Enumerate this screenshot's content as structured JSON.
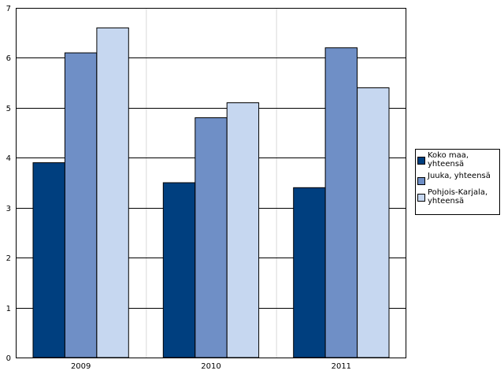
{
  "chart_data": {
    "type": "bar",
    "categories": [
      "2009",
      "2010",
      "2011"
    ],
    "series": [
      {
        "name": "Koko maa,\nyhteensä",
        "values": [
          3.9,
          3.5,
          3.4
        ],
        "color": "#003f7f"
      },
      {
        "name": "Juuka, yhteensä",
        "values": [
          6.1,
          4.8,
          6.2
        ],
        "color": "#6f8fc6"
      },
      {
        "name": "Pohjois-Karjala,\nyhteensä",
        "values": [
          6.6,
          5.1,
          5.4
        ],
        "color": "#c6d7f0"
      }
    ],
    "title": "",
    "xlabel": "",
    "ylabel": "",
    "ylim": [
      0,
      7
    ],
    "yticks": [
      "0",
      "1",
      "2",
      "3",
      "4",
      "5",
      "6",
      "7"
    ],
    "grid": "horizontal",
    "legend_position": "right"
  }
}
